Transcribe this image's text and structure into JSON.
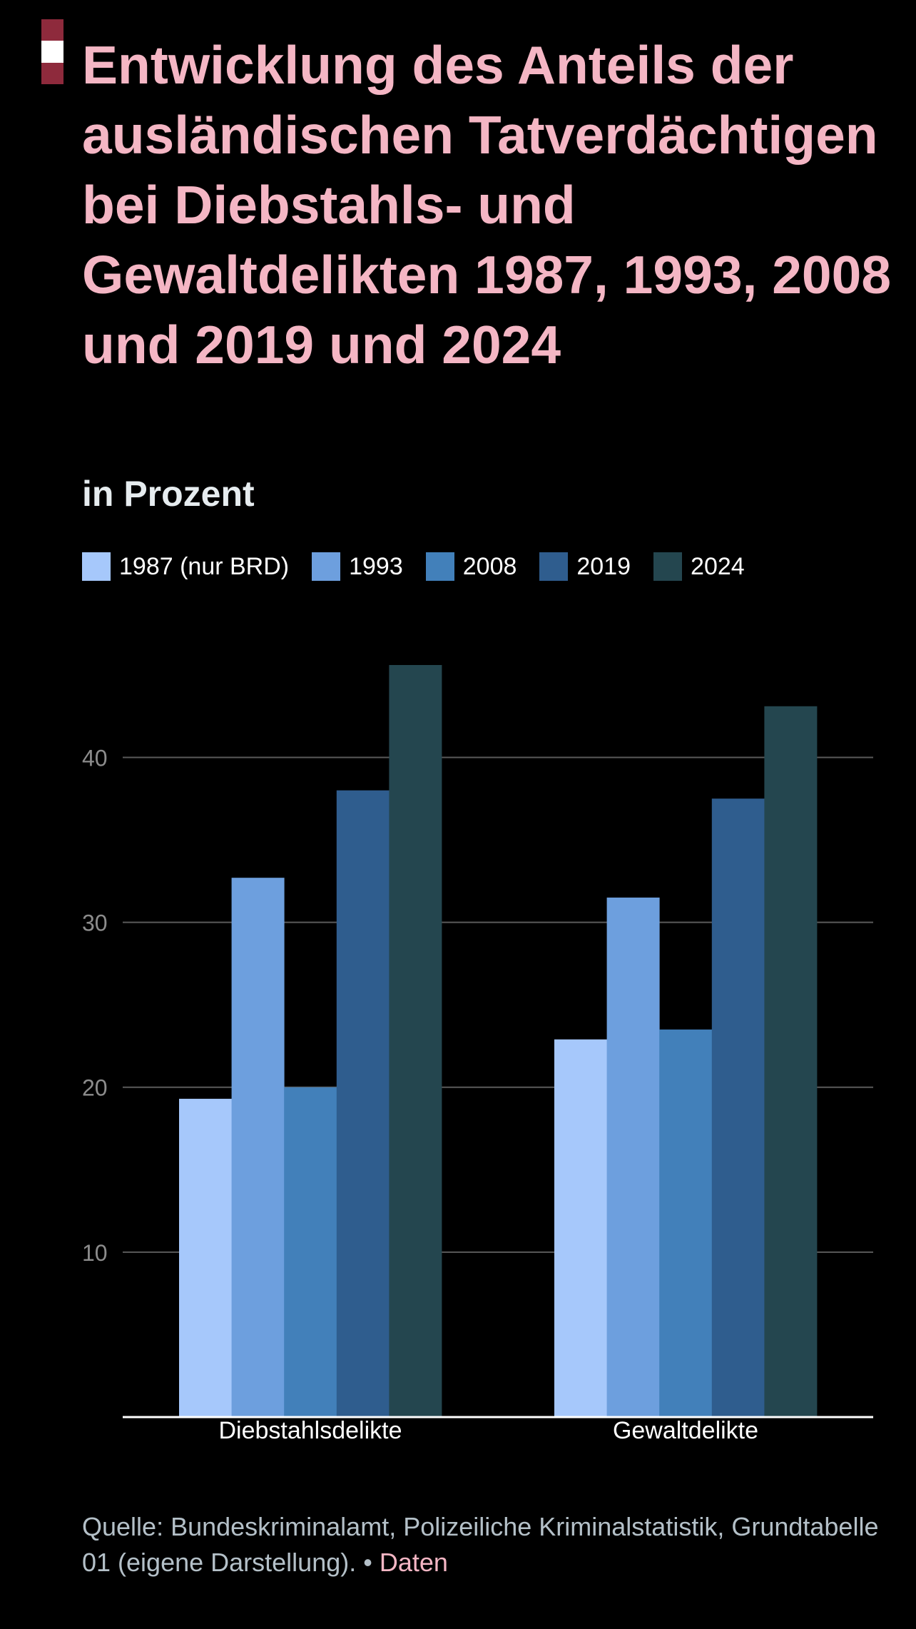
{
  "flag_colors": [
    "#8e2a3c",
    "#ffffff",
    "#8e2a3c"
  ],
  "title": "Entwicklung des Anteils der ausländischen Tatverdächtigen bei Diebstahls- und Gewaltdelikten 1987, 1993, 2008 und 2019 und 2024",
  "subtitle": "in Prozent",
  "source": {
    "text": "Quelle: Bundeskriminalamt, Polizeiliche Kriminalstatistik, Grundtabelle 01 (eigene Darstellung). •",
    "link_label": "Daten"
  },
  "chart_data": {
    "type": "bar",
    "title": "Entwicklung des Anteils der ausländischen Tatverdächtigen bei Diebstahls- und Gewaltdelikten 1987, 1993, 2008 und 2019 und 2024",
    "subtitle": "in Prozent",
    "ylabel": "",
    "xlabel": "",
    "ylim": [
      0,
      45.6
    ],
    "yticks": [
      10,
      20,
      30,
      40
    ],
    "grid": true,
    "legend_position": "top-left",
    "categories": [
      "Diebstahlsdelikte",
      "Gewaltdelikte"
    ],
    "series": [
      {
        "name": "1987 (nur BRD)",
        "color": "#a6c8fb",
        "values": [
          19.3,
          22.9
        ]
      },
      {
        "name": "1993",
        "color": "#6d9fde",
        "values": [
          32.7,
          31.5
        ]
      },
      {
        "name": "2008",
        "color": "#4280ba",
        "values": [
          20.0,
          23.5
        ]
      },
      {
        "name": "2019",
        "color": "#2f5d8e",
        "values": [
          38.0,
          37.5
        ]
      },
      {
        "name": "2024",
        "color": "#24464f",
        "values": [
          45.6,
          43.1
        ]
      }
    ],
    "colors": {
      "grid": "#5a5a5a",
      "axis": "#ffffff",
      "tick_label": "#8c8c8c",
      "category_label": "#ffffff"
    }
  }
}
